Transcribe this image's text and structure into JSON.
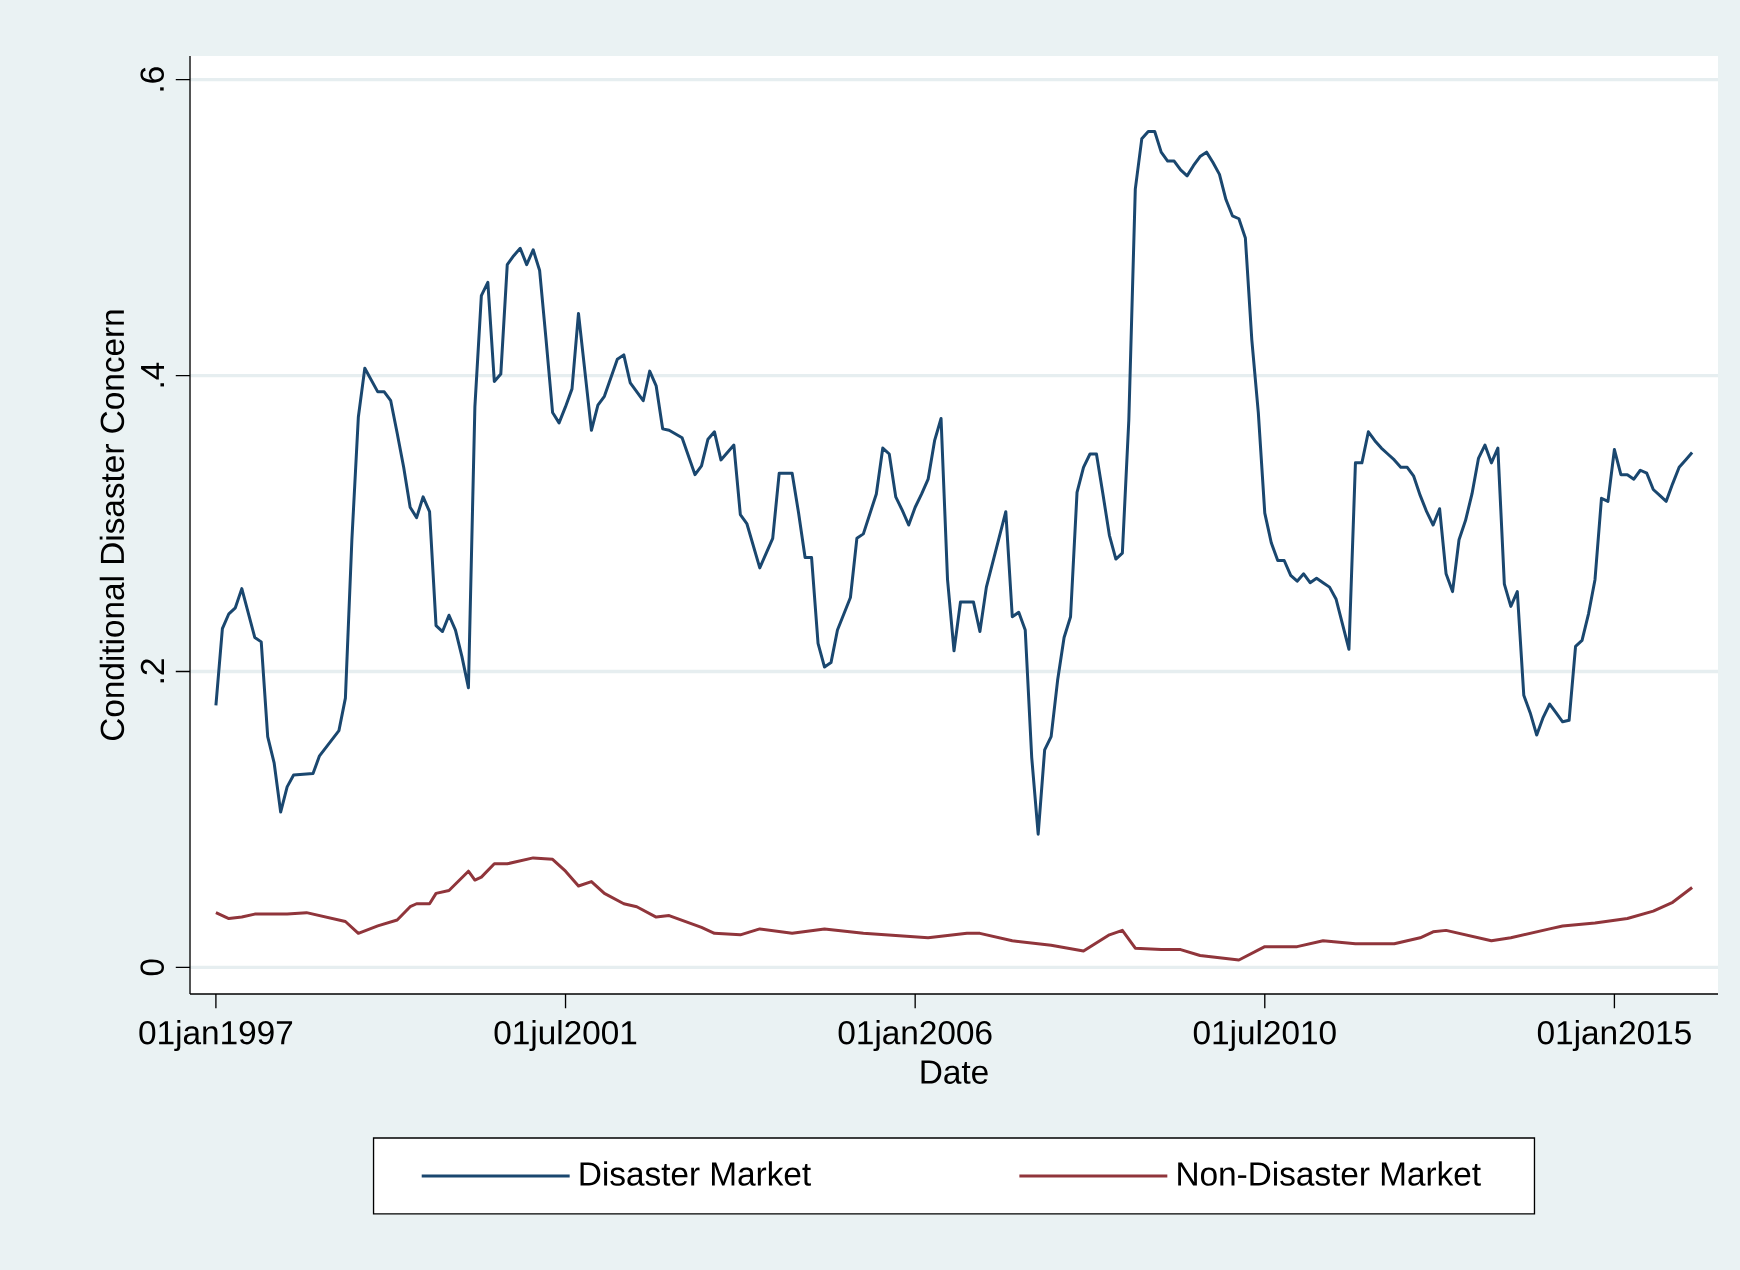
{
  "chart_data": {
    "type": "line",
    "xlabel": "Date",
    "ylabel": "Conditional Disaster Concern",
    "xlim": [
      "1996-09",
      "2016-05"
    ],
    "ylim": [
      -0.018,
      0.616
    ],
    "xticks": [
      {
        "value": "1997-01-01",
        "label": "01jan1997"
      },
      {
        "value": "2001-07-01",
        "label": "01jul2001"
      },
      {
        "value": "2006-01-01",
        "label": "01jan2006"
      },
      {
        "value": "2010-07-01",
        "label": "01jul2010"
      },
      {
        "value": "2015-01-01",
        "label": "01jan2015"
      }
    ],
    "yticks": [
      {
        "value": 0,
        "label": "0"
      },
      {
        "value": 0.2,
        "label": ".2"
      },
      {
        "value": 0.4,
        "label": ".4"
      },
      {
        "value": 0.6,
        "label": ".6"
      }
    ],
    "grid": "y",
    "legend": "bottom",
    "series": [
      {
        "name": "Disaster Market",
        "color": "#1a476f",
        "x": [
          "1997-01",
          "1997-02",
          "1997-03",
          "1997-04",
          "1997-05",
          "1997-07",
          "1997-08",
          "1997-09",
          "1997-10",
          "1997-11",
          "1997-12",
          "1998-01",
          "1998-04",
          "1998-05",
          "1998-08",
          "1998-09",
          "1998-10",
          "1998-11",
          "1998-12",
          "1999-02",
          "1999-03",
          "1999-04",
          "1999-05",
          "1999-06",
          "1999-07",
          "1999-08",
          "1999-09",
          "1999-10",
          "1999-11",
          "1999-12",
          "2000-01",
          "2000-02",
          "2000-03",
          "2000-04",
          "2000-05",
          "2000-06",
          "2000-07",
          "2000-08",
          "2000-09",
          "2000-10",
          "2000-11",
          "2000-12",
          "2001-01",
          "2001-02",
          "2001-03",
          "2001-04",
          "2001-05",
          "2001-06",
          "2001-07",
          "2001-08",
          "2001-09",
          "2001-11",
          "2001-12",
          "2002-01",
          "2002-03",
          "2002-04",
          "2002-05",
          "2002-07",
          "2002-08",
          "2002-09",
          "2002-10",
          "2002-11",
          "2003-01",
          "2003-03",
          "2003-04",
          "2003-05",
          "2003-06",
          "2003-07",
          "2003-09",
          "2003-10",
          "2003-11",
          "2004-01",
          "2004-03",
          "2004-04",
          "2004-06",
          "2004-07",
          "2004-08",
          "2004-09",
          "2004-10",
          "2004-11",
          "2004-12",
          "2005-01",
          "2005-03",
          "2005-04",
          "2005-05",
          "2005-07",
          "2005-08",
          "2005-09",
          "2005-10",
          "2005-11",
          "2005-12",
          "2006-01",
          "2006-02",
          "2006-03",
          "2006-04",
          "2006-05",
          "2006-06",
          "2006-07",
          "2006-08",
          "2006-09",
          "2006-10",
          "2006-11",
          "2006-12",
          "2007-03",
          "2007-04",
          "2007-05",
          "2007-06",
          "2007-07",
          "2007-08",
          "2007-09",
          "2007-10",
          "2007-11",
          "2007-12",
          "2008-01",
          "2008-02",
          "2008-03",
          "2008-04",
          "2008-05",
          "2008-06",
          "2008-07",
          "2008-08",
          "2008-09",
          "2008-10",
          "2008-11",
          "2008-12",
          "2009-01",
          "2009-02",
          "2009-03",
          "2009-04",
          "2009-05",
          "2009-06",
          "2009-07",
          "2009-08",
          "2009-09",
          "2009-10",
          "2009-11",
          "2009-12",
          "2010-01",
          "2010-02",
          "2010-03",
          "2010-04",
          "2010-05",
          "2010-06",
          "2010-07",
          "2010-08",
          "2010-09",
          "2010-10",
          "2010-11",
          "2010-12",
          "2011-01",
          "2011-02",
          "2011-03",
          "2011-04",
          "2011-05",
          "2011-06",
          "2011-07",
          "2011-08",
          "2011-09",
          "2011-10",
          "2011-11",
          "2011-12",
          "2012-01",
          "2012-02",
          "2012-03",
          "2012-04",
          "2012-05",
          "2012-06",
          "2012-07",
          "2012-08",
          "2012-09",
          "2012-10",
          "2012-11",
          "2012-12",
          "2013-01",
          "2013-02",
          "2013-03",
          "2013-04",
          "2013-05",
          "2013-06",
          "2013-07",
          "2013-08",
          "2013-09",
          "2013-10",
          "2013-11",
          "2013-12",
          "2014-01",
          "2014-02",
          "2014-03",
          "2014-04",
          "2014-05",
          "2014-06",
          "2014-07",
          "2014-08",
          "2014-09",
          "2014-10",
          "2014-11",
          "2014-12",
          "2015-01",
          "2015-02",
          "2015-03",
          "2015-04",
          "2015-05",
          "2015-06",
          "2015-07",
          "2015-08",
          "2015-09",
          "2015-10",
          "2015-11",
          "2015-12",
          "2016-01"
        ],
        "values": [
          0.177,
          0.229,
          0.239,
          0.243,
          0.256,
          0.223,
          0.22,
          0.156,
          0.138,
          0.105,
          0.122,
          0.13,
          0.131,
          0.143,
          0.16,
          0.182,
          0.289,
          0.372,
          0.405,
          0.389,
          0.389,
          0.383,
          0.361,
          0.338,
          0.311,
          0.304,
          0.318,
          0.308,
          0.231,
          0.227,
          0.238,
          0.228,
          0.21,
          0.189,
          0.379,
          0.454,
          0.463,
          0.396,
          0.401,
          0.475,
          0.481,
          0.486,
          0.475,
          0.485,
          0.471,
          0.424,
          0.375,
          0.368,
          0.379,
          0.391,
          0.442,
          0.363,
          0.38,
          0.386,
          0.411,
          0.414,
          0.395,
          0.383,
          0.403,
          0.393,
          0.364,
          0.363,
          0.358,
          0.333,
          0.339,
          0.357,
          0.362,
          0.343,
          0.353,
          0.306,
          0.3,
          0.27,
          0.29,
          0.334,
          0.334,
          0.307,
          0.277,
          0.277,
          0.219,
          0.203,
          0.206,
          0.228,
          0.25,
          0.29,
          0.293,
          0.32,
          0.351,
          0.347,
          0.318,
          0.309,
          0.299,
          0.311,
          0.32,
          0.33,
          0.356,
          0.371,
          0.262,
          0.214,
          0.247,
          0.247,
          0.247,
          0.227,
          0.257,
          0.308,
          0.237,
          0.24,
          0.228,
          0.142,
          0.09,
          0.147,
          0.156,
          0.194,
          0.223,
          0.237,
          0.321,
          0.338,
          0.347,
          0.347,
          0.32,
          0.292,
          0.276,
          0.28,
          0.37,
          0.526,
          0.56,
          0.565,
          0.565,
          0.551,
          0.545,
          0.545,
          0.539,
          0.535,
          0.542,
          0.548,
          0.551,
          0.544,
          0.536,
          0.519,
          0.508,
          0.506,
          0.493,
          0.424,
          0.375,
          0.307,
          0.287,
          0.275,
          0.275,
          0.265,
          0.261,
          0.266,
          0.26,
          0.263,
          0.26,
          0.257,
          0.249,
          0.232,
          0.215,
          0.341,
          0.341,
          0.362,
          0.356,
          0.351,
          0.347,
          0.343,
          0.338,
          0.338,
          0.332,
          0.319,
          0.308,
          0.299,
          0.31,
          0.266,
          0.254,
          0.289,
          0.302,
          0.32,
          0.344,
          0.353,
          0.341,
          0.351,
          0.259,
          0.244,
          0.254,
          0.184,
          0.172,
          0.157,
          0.169,
          0.178,
          0.172,
          0.166,
          0.167,
          0.217,
          0.221,
          0.239,
          0.262,
          0.317,
          0.315,
          0.35,
          0.333,
          0.333,
          0.33,
          0.336,
          0.334,
          0.323,
          0.319,
          0.315,
          0.327,
          0.338,
          0.343,
          0.348
        ]
      },
      {
        "name": "Non-Disaster Market",
        "color": "#90353b",
        "x": [
          "1997-01",
          "1997-03",
          "1997-05",
          "1997-07",
          "1997-12",
          "1998-03",
          "1998-09",
          "1998-11",
          "1999-02",
          "1999-05",
          "1999-07",
          "1999-08",
          "1999-10",
          "1999-11",
          "2000-01",
          "2000-04",
          "2000-05",
          "2000-06",
          "2000-08",
          "2000-10",
          "2001-02",
          "2001-05",
          "2001-07",
          "2001-09",
          "2001-11",
          "2002-01",
          "2002-04",
          "2002-06",
          "2002-09",
          "2002-11",
          "2003-04",
          "2003-06",
          "2003-10",
          "2004-01",
          "2004-06",
          "2004-11",
          "2005-05",
          "2006-03",
          "2006-09",
          "2006-11",
          "2007-04",
          "2007-10",
          "2008-03",
          "2008-07",
          "2008-09",
          "2008-11",
          "2009-03",
          "2009-06",
          "2009-09",
          "2010-03",
          "2010-07",
          "2010-12",
          "2011-04",
          "2011-09",
          "2012-03",
          "2012-07",
          "2012-09",
          "2012-11",
          "2013-06",
          "2013-09",
          "2014-03",
          "2014-05",
          "2014-10",
          "2015-03",
          "2015-07",
          "2015-10",
          "2016-01"
        ],
        "values": [
          0.037,
          0.033,
          0.034,
          0.036,
          0.036,
          0.037,
          0.031,
          0.023,
          0.028,
          0.032,
          0.041,
          0.043,
          0.043,
          0.05,
          0.052,
          0.065,
          0.059,
          0.061,
          0.07,
          0.07,
          0.074,
          0.073,
          0.065,
          0.055,
          0.058,
          0.05,
          0.043,
          0.041,
          0.034,
          0.035,
          0.027,
          0.023,
          0.022,
          0.026,
          0.023,
          0.026,
          0.023,
          0.02,
          0.023,
          0.023,
          0.018,
          0.015,
          0.011,
          0.022,
          0.025,
          0.013,
          0.012,
          0.012,
          0.008,
          0.005,
          0.014,
          0.014,
          0.018,
          0.016,
          0.016,
          0.02,
          0.024,
          0.025,
          0.018,
          0.02,
          0.026,
          0.028,
          0.03,
          0.033,
          0.038,
          0.044,
          0.054
        ]
      }
    ]
  }
}
